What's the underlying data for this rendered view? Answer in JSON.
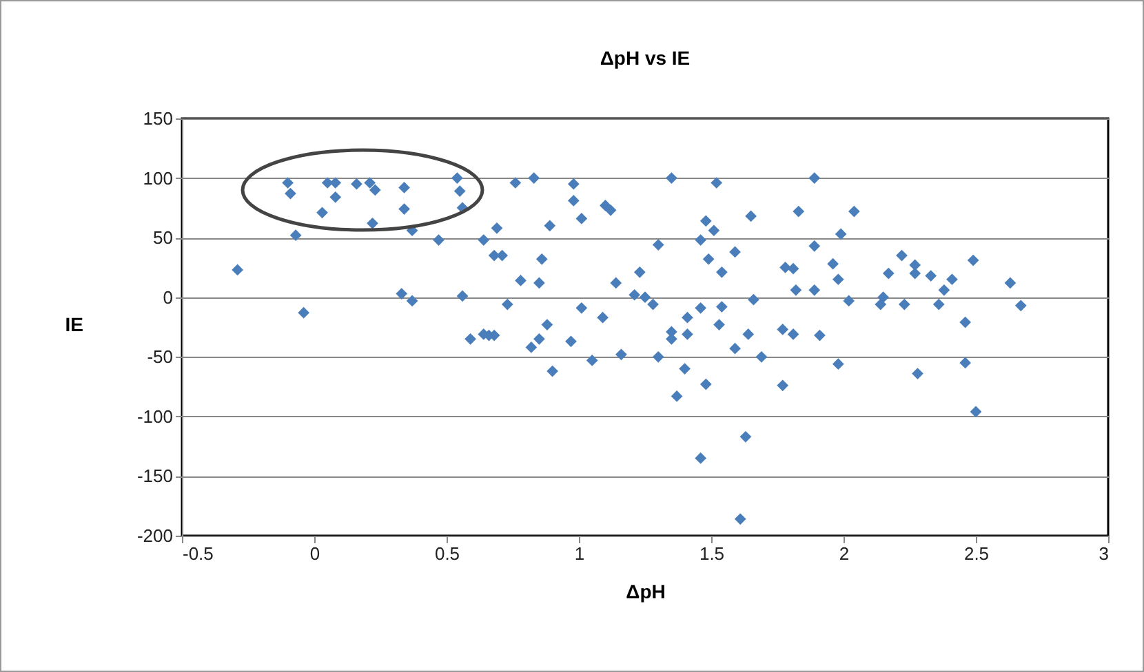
{
  "chart_data": {
    "type": "scatter",
    "title": "ΔpH vs IE",
    "xlabel": "ΔpH",
    "ylabel": "IE",
    "color": "#4a7ebb",
    "marker": "diamond",
    "grid": "y",
    "xlim": [
      -0.5,
      3
    ],
    "xticks": [
      -0.5,
      0,
      0.5,
      1,
      1.5,
      2,
      2.5,
      3
    ],
    "ylim": [
      -200,
      150
    ],
    "yticks": [
      -200,
      -150,
      -100,
      -50,
      0,
      50,
      100,
      150
    ],
    "x": [
      -0.1,
      -0.09,
      0.05,
      0.08,
      0.08,
      0.16,
      0.21,
      0.23,
      0.34,
      0.54,
      0.55,
      0.56,
      0.03,
      0.34,
      0.22,
      -0.07,
      0.37,
      0.47,
      0.64,
      0.68,
      -0.29,
      -0.04,
      0.33,
      0.37,
      0.56,
      0.59,
      0.64,
      0.68,
      0.76,
      0.83,
      0.98,
      0.98,
      1.01,
      1.1,
      1.12,
      0.89,
      0.69,
      0.71,
      0.86,
      0.78,
      0.85,
      0.73,
      1.01,
      1.09,
      1.14,
      1.23,
      1.21,
      1.25,
      1.28,
      1.3,
      1.35,
      1.52,
      1.65,
      1.48,
      1.46,
      1.51,
      1.59,
      1.49,
      1.54,
      1.46,
      1.54,
      1.41,
      1.53,
      1.35,
      1.35,
      1.41,
      1.66,
      1.64,
      1.59,
      1.69,
      0.66,
      0.88,
      0.85,
      0.82,
      0.97,
      1.05,
      1.16,
      1.3,
      0.9,
      1.4,
      1.37,
      1.48,
      1.63,
      1.46,
      1.61,
      1.77,
      1.78,
      1.89,
      1.83,
      2.04,
      1.99,
      1.89,
      1.81,
      1.96,
      1.98,
      1.82,
      1.89,
      2.02,
      1.77,
      1.81,
      1.91,
      1.98,
      2.17,
      2.14,
      2.15,
      2.23,
      2.22,
      2.27,
      2.27,
      2.33,
      2.41,
      2.38,
      2.36,
      2.49,
      2.46,
      2.28,
      2.46,
      2.5,
      2.63,
      2.67
    ],
    "values": [
      96,
      87,
      96,
      96,
      84,
      95,
      96,
      90,
      92,
      100,
      89,
      75,
      71,
      74,
      62,
      52,
      56,
      48,
      48,
      35,
      23,
      -13,
      3,
      -3,
      1,
      -35,
      -31,
      -32,
      96,
      100,
      95,
      81,
      66,
      77,
      73,
      60,
      58,
      35,
      32,
      14,
      12,
      -6,
      -9,
      -17,
      12,
      21,
      2,
      0,
      -6,
      44,
      100,
      96,
      68,
      64,
      48,
      56,
      38,
      32,
      21,
      -9,
      -8,
      -17,
      -23,
      -29,
      -35,
      -31,
      -2,
      -31,
      -43,
      -50,
      -32,
      -23,
      -35,
      -42,
      -37,
      -53,
      -48,
      -50,
      -62,
      -60,
      -83,
      -73,
      -117,
      -135,
      -186,
      -74,
      25,
      100,
      72,
      72,
      53,
      43,
      24,
      28,
      15,
      6,
      6,
      -3,
      -27,
      -31,
      -32,
      -56,
      20,
      -6,
      0,
      -6,
      35,
      27,
      20,
      18,
      15,
      6,
      -6,
      31,
      -21,
      -64,
      -55,
      -96,
      12,
      -7
    ]
  }
}
